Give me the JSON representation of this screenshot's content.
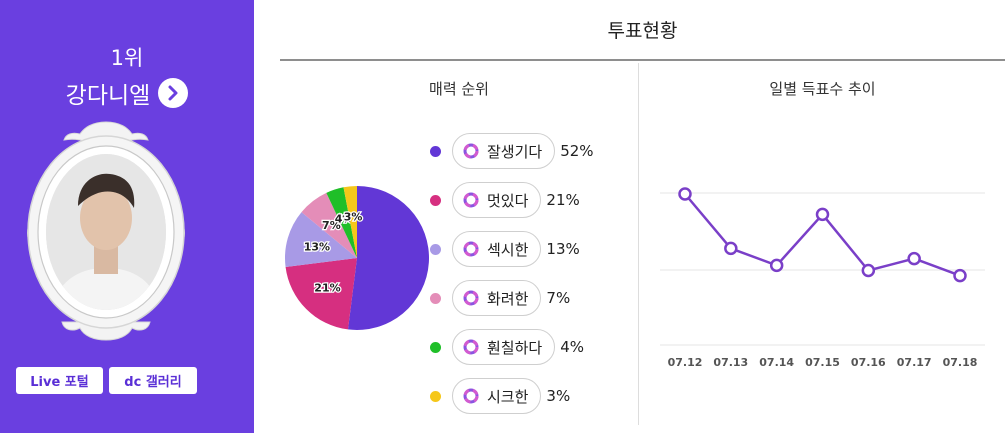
{
  "profile": {
    "rank": "1위",
    "name": "강다니엘",
    "arrow_icon": "chevron-right-circle-icon",
    "buttons": {
      "live_portal": "Live 포털",
      "dc_gallery": "dc 갤러리"
    }
  },
  "header": {
    "title": "투표현황"
  },
  "charm_ranking": {
    "title": "매력 순위",
    "items": [
      {
        "label": "잘생기다",
        "percent": "52%",
        "value": 52,
        "color": "#6237d6"
      },
      {
        "label": "멋있다",
        "percent": "21%",
        "value": 21,
        "color": "#d62f80"
      },
      {
        "label": "섹시한",
        "percent": "13%",
        "value": 13,
        "color": "#a89ae6"
      },
      {
        "label": "화려한",
        "percent": "7%",
        "value": 7,
        "color": "#e48db8"
      },
      {
        "label": "훤칠하다",
        "percent": "4%",
        "value": 4,
        "color": "#1fbf28"
      },
      {
        "label": "시크한",
        "percent": "3%",
        "value": 3,
        "color": "#f5c71a"
      }
    ]
  },
  "chart_data": [
    {
      "type": "pie",
      "title": "매력 순위",
      "categories": [
        "잘생기다",
        "멋있다",
        "섹시한",
        "화려한",
        "훤칠하다",
        "시크한"
      ],
      "values": [
        52,
        21,
        13,
        7,
        4,
        3
      ],
      "slice_labels": [
        "",
        "21%",
        "13%",
        "7%",
        "4%",
        "3%"
      ],
      "colors": [
        "#6237d6",
        "#d62f80",
        "#a89ae6",
        "#e48db8",
        "#1fbf28",
        "#f5c71a"
      ]
    },
    {
      "type": "line",
      "title": "일별 득표수 추이",
      "categories": [
        "07.12",
        "07.13",
        "07.14",
        "07.15",
        "07.16",
        "07.17",
        "07.18"
      ],
      "values": [
        80,
        48,
        38,
        68,
        35,
        42,
        32
      ],
      "ylim": [
        0,
        100
      ],
      "grid": true,
      "color": "#7a3fc8"
    }
  ],
  "trend": {
    "title": "일별 득표수 추이"
  }
}
